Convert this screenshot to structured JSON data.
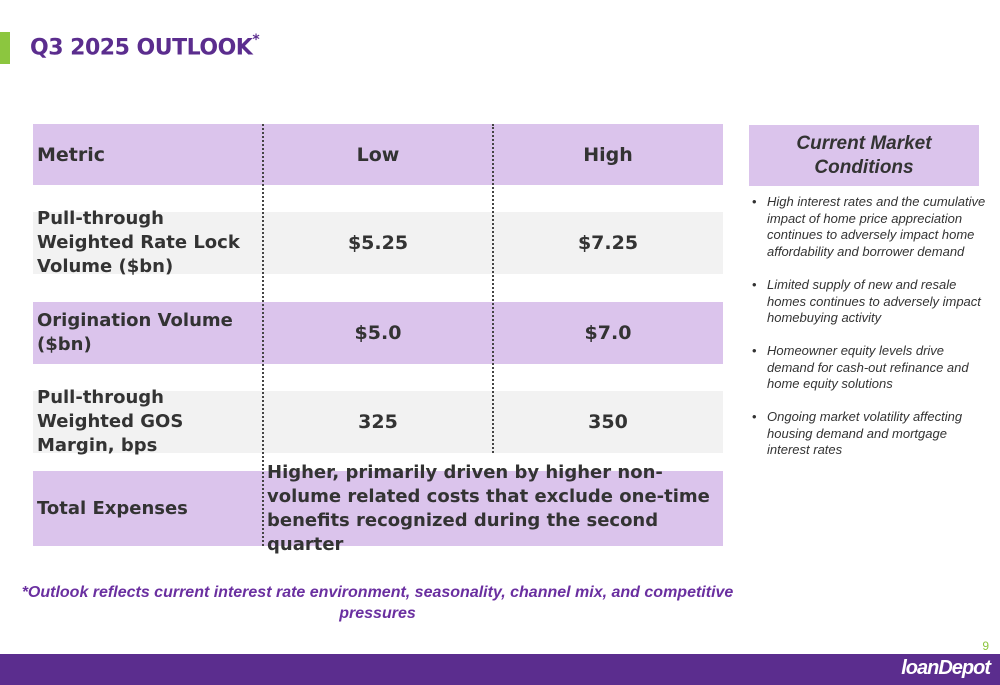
{
  "slide": {
    "title": "Q3 2025 OUTLOOK",
    "title_marker": "*",
    "page_number": "9",
    "logo_text": "loanDepot"
  },
  "table": {
    "headers": [
      "Metric",
      "Low",
      "High"
    ],
    "rows": [
      {
        "metric": "Pull-through Weighted Rate Lock Volume ($bn)",
        "low": "$5.25",
        "high": "$7.25"
      },
      {
        "metric": "Origination Volume ($bn)",
        "low": "$5.0",
        "high": "$7.0"
      },
      {
        "metric": "Pull-through Weighted GOS Margin, bps",
        "low": "325",
        "high": "350"
      }
    ],
    "expenses": {
      "metric": "Total Expenses",
      "text": "Higher, primarily driven by higher non-volume related costs that exclude one-time benefits recognized during the second quarter"
    }
  },
  "market_conditions": {
    "title": "Current Market Conditions",
    "bullet_symbol": "•",
    "bullets": [
      "High interest rates and the cumulative impact of home price appreciation continues to adversely impact home affordability and borrower demand",
      "Limited supply of new and resale homes continues to adversely impact homebuying activity",
      "Homeowner equity levels drive demand for cash-out refinance and home equity solutions",
      "Ongoing market volatility affecting housing demand and mortgage interest rates"
    ]
  },
  "footnote": "*Outlook reflects current interest rate environment, seasonality, channel mix, and competitive pressures",
  "colors": {
    "brand_purple": "#5b2d8e",
    "header_fill": "#dbc4ec",
    "row_grey": "#f2f2f2",
    "accent_green": "#8cc63f"
  }
}
